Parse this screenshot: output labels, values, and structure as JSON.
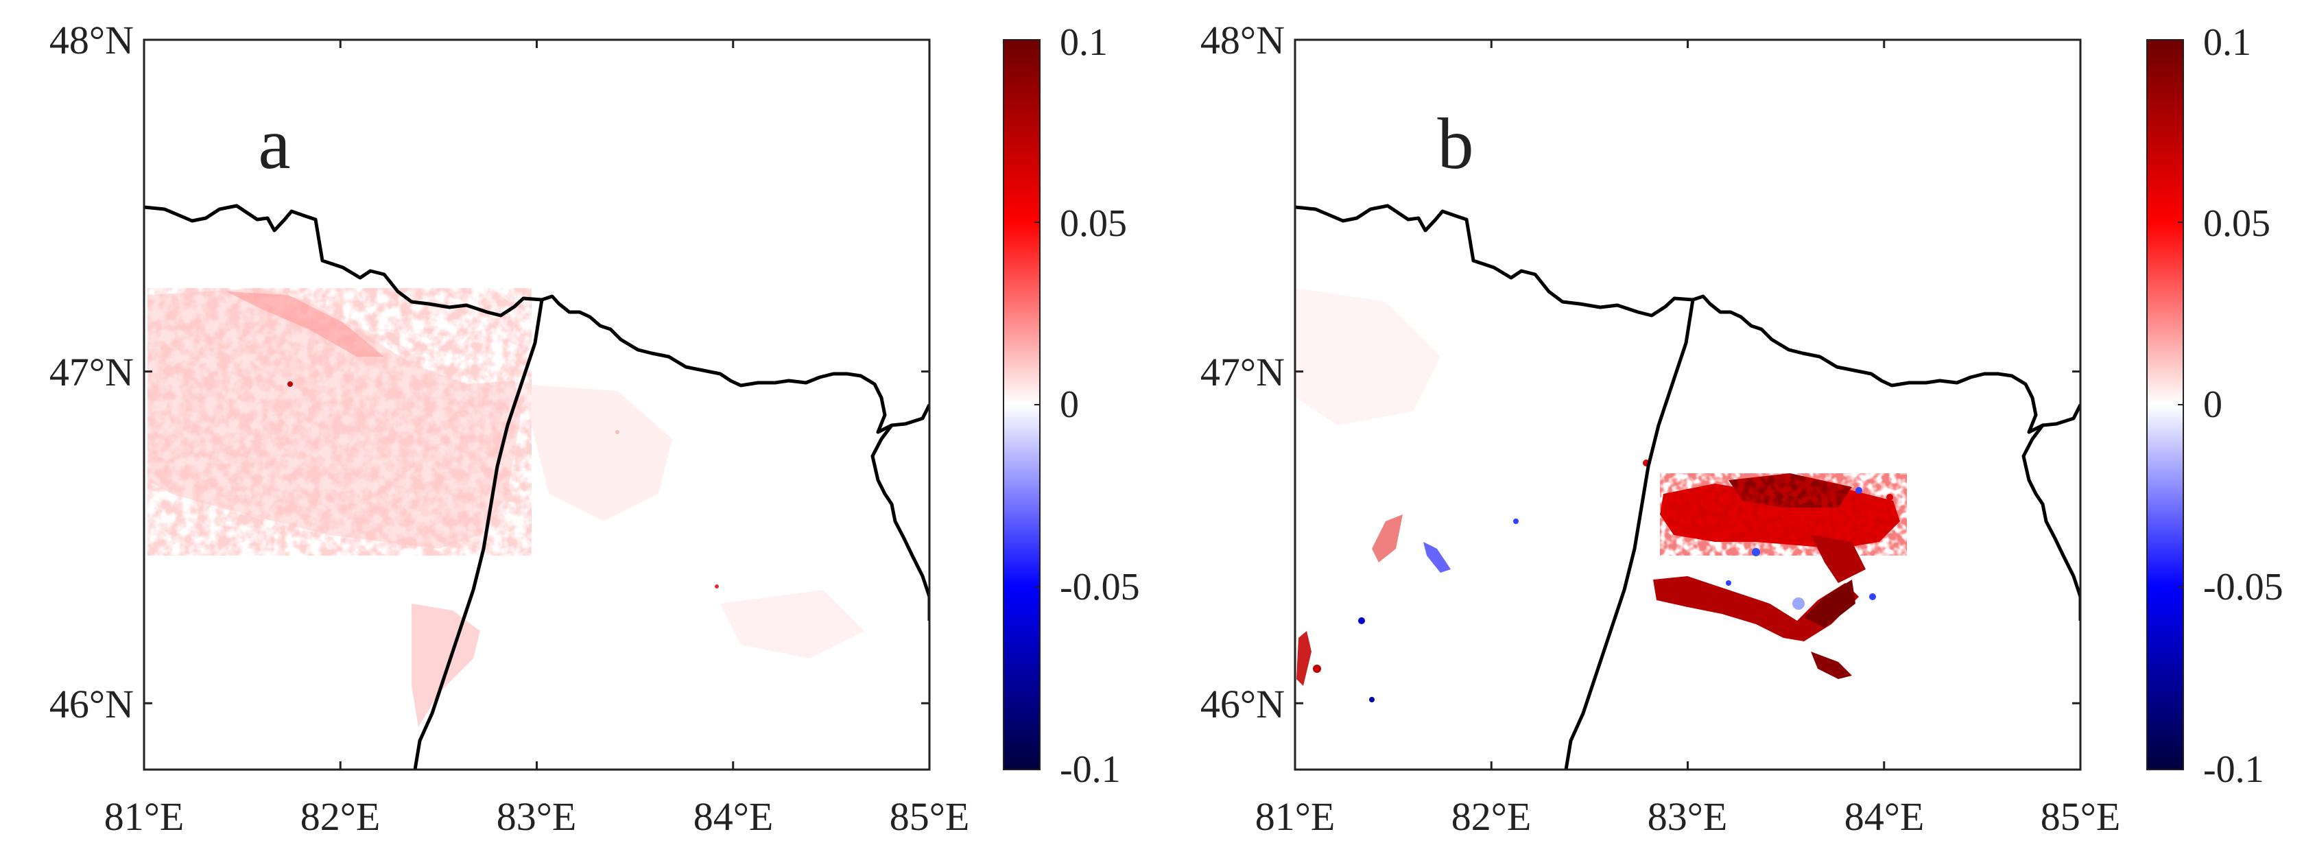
{
  "panels": [
    {
      "id": "a",
      "label": "a",
      "lon_ticks": [
        "81°E",
        "82°E",
        "83°E",
        "84°E",
        "85°E"
      ],
      "lat_ticks": [
        "48°N",
        "47°N",
        "46°N"
      ],
      "colorbar_ticks": [
        "0.1",
        "0.05",
        "0",
        "-0.05",
        "-0.1"
      ]
    },
    {
      "id": "b",
      "label": "b",
      "lon_ticks": [
        "81°E",
        "82°E",
        "83°E",
        "84°E",
        "85°E"
      ],
      "lat_ticks": [
        "48°N",
        "47°N",
        "46°N"
      ],
      "colorbar_ticks": [
        "0.1",
        "0.05",
        "0",
        "-0.05",
        "-0.1"
      ]
    }
  ],
  "colorbar": {
    "min": -0.1,
    "max": 0.1,
    "colors": [
      "#00003c",
      "#0000ff",
      "#ffffff",
      "#ff0000",
      "#6e0000"
    ]
  },
  "map_extent": {
    "lon": [
      81,
      85
    ],
    "lat": [
      45.8,
      48
    ]
  }
}
